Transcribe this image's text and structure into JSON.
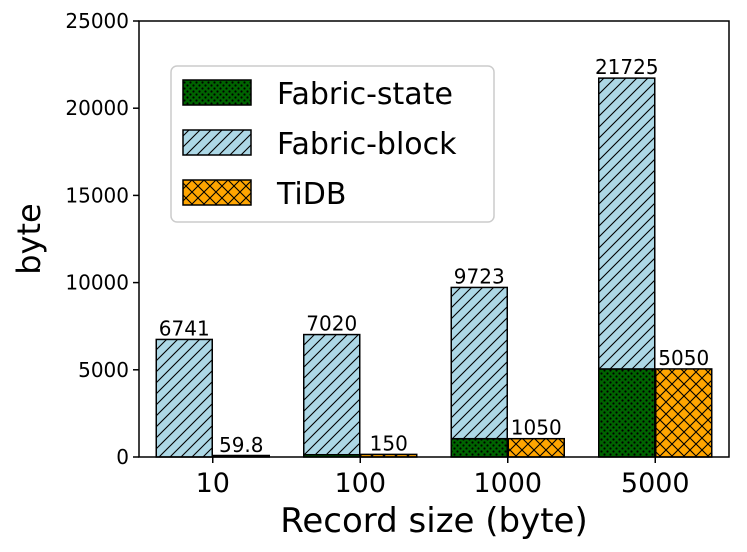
{
  "chart_data": {
    "type": "bar",
    "xlabel": "Record size (byte)",
    "ylabel": "byte",
    "categories": [
      "10",
      "100",
      "1000",
      "5000"
    ],
    "series": [
      {
        "name": "Fabric-state",
        "values": [
          0,
          130,
          1050,
          5050
        ]
      },
      {
        "name": "Fabric-block",
        "values": [
          6741,
          7020,
          9723,
          21725
        ]
      },
      {
        "name": "TiDB",
        "values": [
          59.8,
          150,
          1050,
          5050
        ]
      }
    ],
    "stacked_series": [
      "Fabric-state",
      "Fabric-block"
    ],
    "data_labels": [
      {
        "category": "10",
        "bar": "stack",
        "text": "6741"
      },
      {
        "category": "10",
        "bar": "TiDB",
        "text": "59.8"
      },
      {
        "category": "100",
        "bar": "stack",
        "text": "7020"
      },
      {
        "category": "100",
        "bar": "TiDB",
        "text": "150"
      },
      {
        "category": "1000",
        "bar": "stack",
        "text": "9723"
      },
      {
        "category": "1000",
        "bar": "TiDB",
        "text": "1050"
      },
      {
        "category": "5000",
        "bar": "stack",
        "text": "21725"
      },
      {
        "category": "5000",
        "bar": "TiDB",
        "text": "5050"
      }
    ],
    "ylim": [
      0,
      25000
    ],
    "yticks": [
      "0",
      "5000",
      "10000",
      "15000",
      "20000",
      "25000"
    ],
    "grid": false,
    "legend_position": "top-left",
    "colors": {
      "Fabric-state": "#006400",
      "Fabric-block": "#add8e6",
      "TiDB": "#ffa500"
    },
    "hatches": {
      "Fabric-state": "dots",
      "Fabric-block": "diagonal",
      "TiDB": "crosshatch"
    }
  }
}
